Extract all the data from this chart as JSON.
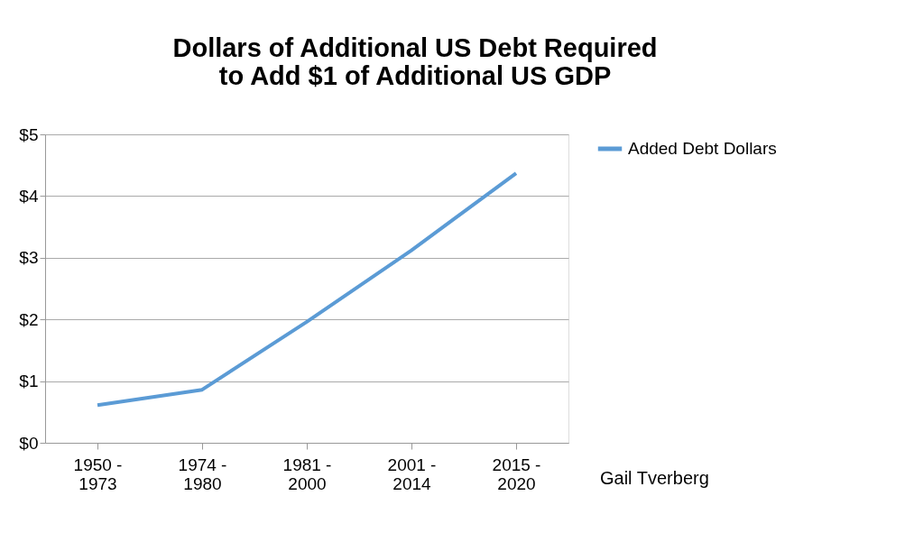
{
  "chart_data": {
    "type": "line",
    "title": "Dollars of Additional US Debt Required\nto Add $1 of Additional US GDP",
    "categories": [
      "1950 - 1973",
      "1974 - 1980",
      "1981 - 2000",
      "2001 - 2014",
      "2015 - 2020"
    ],
    "series": [
      {
        "name": "Added Debt Dollars",
        "color": "#5b9bd5",
        "values": [
          0.61,
          0.86,
          1.96,
          3.12,
          4.37
        ]
      }
    ],
    "ylim": [
      0,
      5
    ],
    "yticks": [
      {
        "value": 0,
        "label": "$0"
      },
      {
        "value": 1,
        "label": "$1"
      },
      {
        "value": 2,
        "label": "$2"
      },
      {
        "value": 3,
        "label": "$3"
      },
      {
        "value": 4,
        "label": "$4"
      },
      {
        "value": 5,
        "label": "$5"
      }
    ],
    "grid": "y",
    "legend": "right",
    "marker": "none",
    "line_style": "solid",
    "annotations": [
      "Gail Tverberg"
    ]
  }
}
